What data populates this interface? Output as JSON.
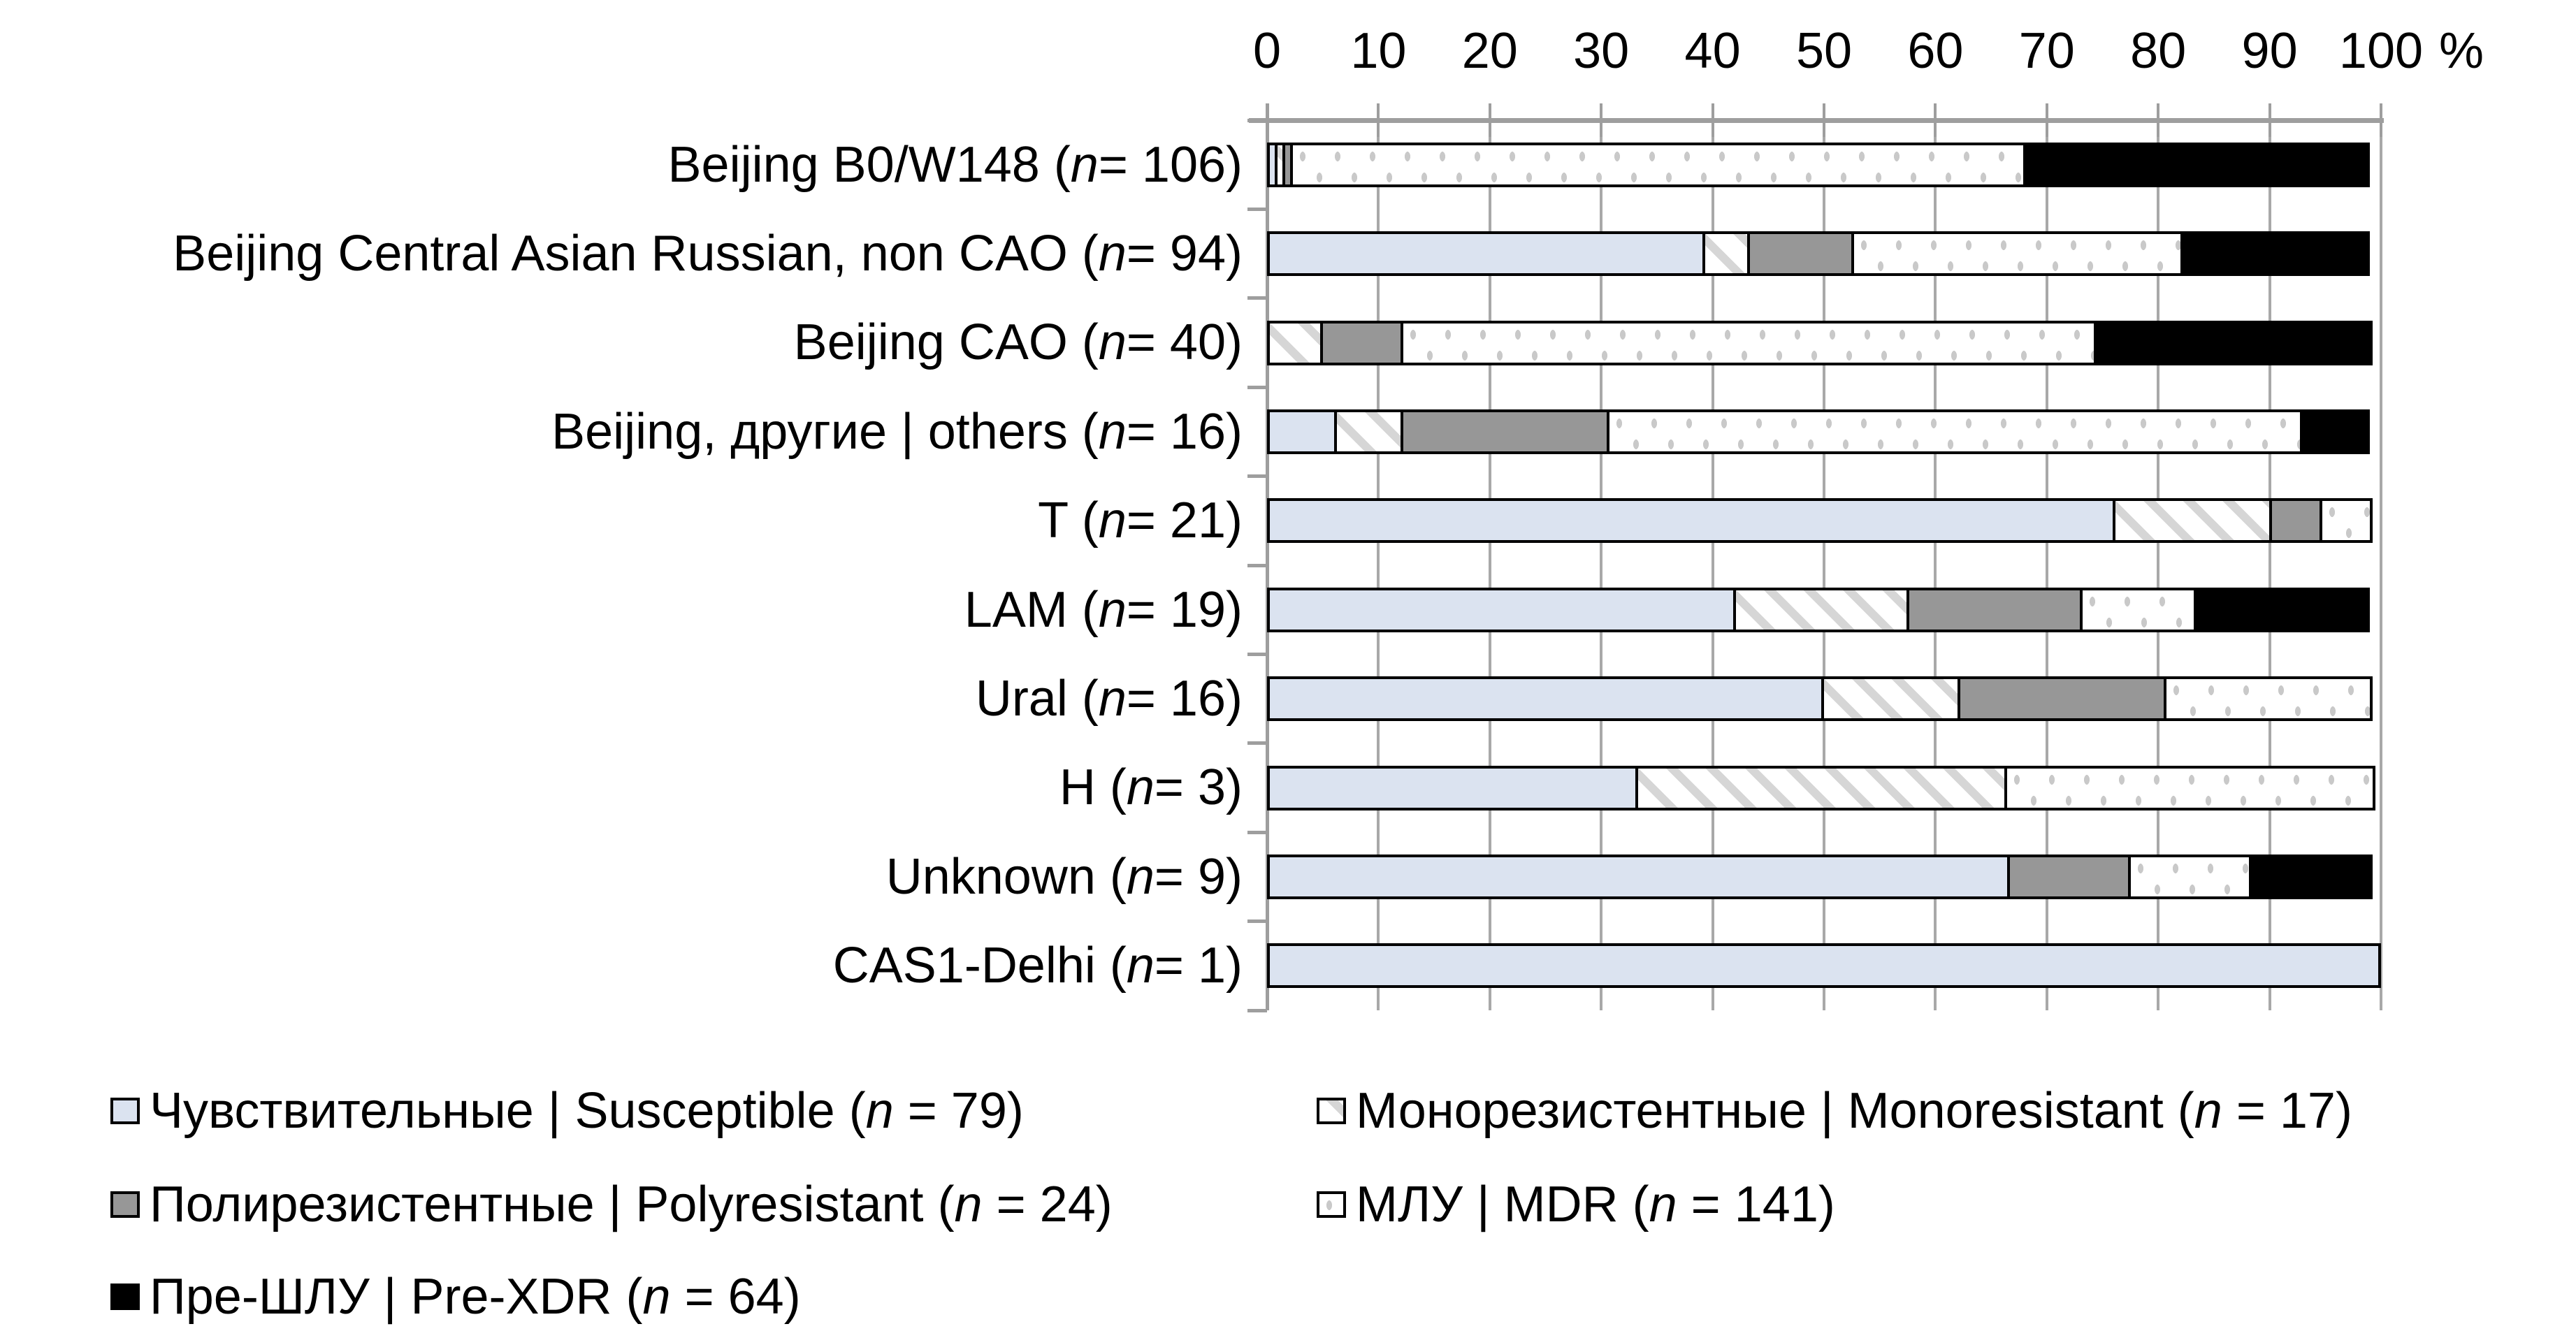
{
  "colors": {
    "sus": "#dbe3f0",
    "poly": "#979797",
    "xdr": "#000000",
    "hatch": "#d6d6d6",
    "dot": "#c9c9c9",
    "grid": "#a8a8a8",
    "axis": "#9e9e9e"
  },
  "chart_data": {
    "type": "bar",
    "subtype": "horizontal-stacked-100pct",
    "unit": "%",
    "x_ticks": [
      "0",
      "10",
      "20",
      "30",
      "40",
      "50",
      "60",
      "70",
      "80",
      "90",
      "100"
    ],
    "xlim": [
      0,
      100
    ],
    "grid": "vertical-on",
    "legend_position": "bottom-two-columns",
    "series_keys": [
      "susceptible",
      "monoresistant",
      "polyresistant",
      "mdr",
      "pre_xdr"
    ],
    "rows": [
      {
        "pre": "Beijing B0/W148 (",
        "n_char": "n",
        "post": " = 106)",
        "n": 106,
        "counts": [
          1,
          1,
          1,
          70,
          33
        ]
      },
      {
        "pre": "Beijing Central Asian Russian, non CAO (",
        "n_char": "n",
        "post": " = 94)",
        "n": 94,
        "counts": [
          37,
          4,
          9,
          28,
          16
        ]
      },
      {
        "pre": "Beijing CAO (",
        "n_char": "n",
        "post": " = 40)",
        "n": 40,
        "counts": [
          0,
          2,
          3,
          25,
          10
        ]
      },
      {
        "pre": "Beijing, другие | others (",
        "n_char": "n",
        "post": " = 16)",
        "n": 16,
        "counts": [
          1,
          1,
          3,
          10,
          1
        ]
      },
      {
        "pre": "T (",
        "n_char": "n",
        "post": " = 21)",
        "n": 21,
        "counts": [
          16,
          3,
          1,
          1,
          0
        ]
      },
      {
        "pre": "LAM (",
        "n_char": "n",
        "post": " = 19)",
        "n": 19,
        "counts": [
          8,
          3,
          3,
          2,
          3
        ]
      },
      {
        "pre": "Ural (",
        "n_char": "n",
        "post": " = 16)",
        "n": 16,
        "counts": [
          8,
          2,
          3,
          3,
          0
        ]
      },
      {
        "pre": "H (",
        "n_char": "n",
        "post": " = 3)",
        "n": 3,
        "counts": [
          1,
          1,
          0,
          1,
          0
        ]
      },
      {
        "pre": "Unknown (",
        "n_char": "n",
        "post": " = 9)",
        "n": 9,
        "counts": [
          6,
          0,
          1,
          1,
          1
        ]
      },
      {
        "pre": "CAS1-Delhi (",
        "n_char": "n",
        "post": " = 1)",
        "n": 1,
        "counts": [
          1,
          0,
          0,
          0,
          0
        ]
      }
    ],
    "legend": [
      {
        "key": "susceptible",
        "pre": "Чувствительные | Susceptible (",
        "n_char": "n",
        "post": " = 79)"
      },
      {
        "key": "monoresistant",
        "pre": "Монорезистентные | Monoresistant (",
        "n_char": "n",
        "post": " = 17)"
      },
      {
        "key": "polyresistant",
        "pre": "Полирезистентные | Polyresistant (",
        "n_char": "n",
        "post": " = 24)"
      },
      {
        "key": "mdr",
        "pre": "МЛУ | MDR (",
        "n_char": "n",
        "post": " = 141)"
      },
      {
        "key": "pre_xdr",
        "pre": "Пре-ШЛУ | Pre-XDR (",
        "n_char": "n",
        "post": " = 64)"
      }
    ]
  }
}
